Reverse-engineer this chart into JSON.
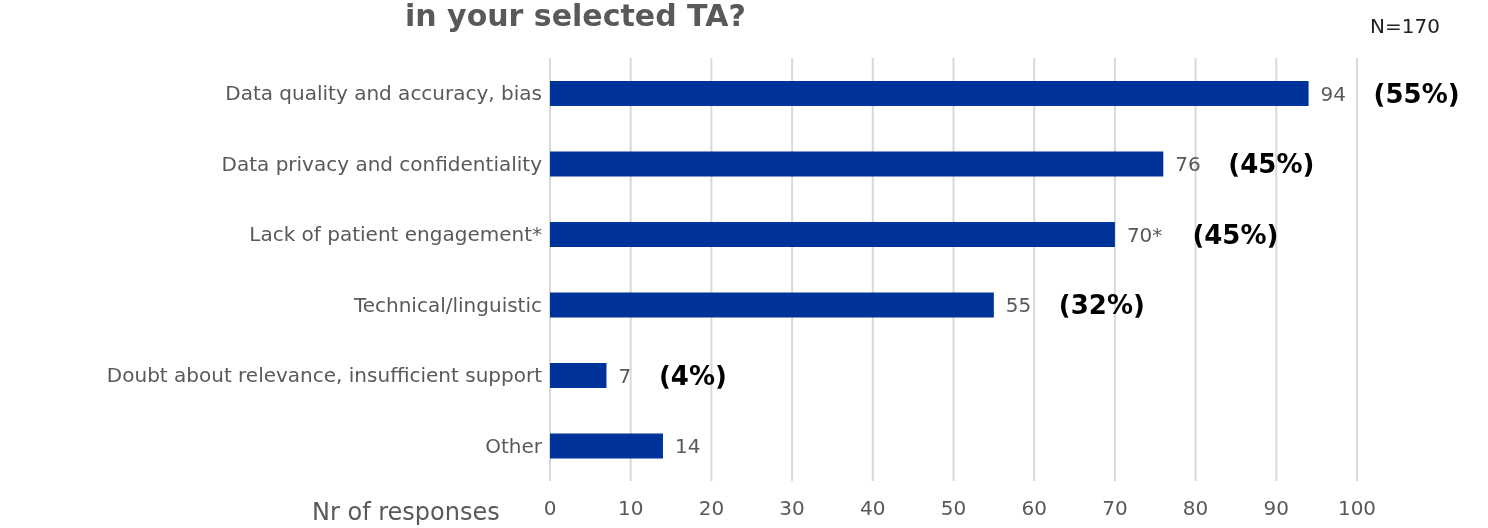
{
  "chart_data": {
    "type": "bar",
    "orientation": "horizontal",
    "title": "in your selected TA?",
    "xlabel": "Nr of responses",
    "categories": [
      "Data quality and accuracy, bias",
      "Data privacy and confidentiality",
      "Lack of patient engagement*",
      "Technical/linguistic",
      "Doubt about relevance, insufficient support",
      "Other"
    ],
    "values": [
      94,
      76,
      70,
      55,
      7,
      14
    ],
    "value_labels": [
      "94",
      "76",
      "70*",
      "55",
      "7",
      "14"
    ],
    "color": "#00339a",
    "xlim": [
      0,
      100
    ],
    "xticks": [
      0,
      10,
      20,
      30,
      40,
      50,
      60,
      70,
      80,
      90,
      100
    ],
    "grid": "x",
    "annotations": [
      "N=170",
      "(55%)",
      "(45%)",
      "(45%)",
      "(32%)",
      "(4%)"
    ]
  }
}
